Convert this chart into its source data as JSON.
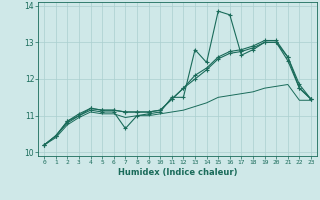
{
  "xlabel": "Humidex (Indice chaleur)",
  "ylabel": "",
  "xlim": [
    -0.5,
    23.5
  ],
  "ylim": [
    9.9,
    14.1
  ],
  "yticks": [
    10,
    11,
    12,
    13,
    14
  ],
  "xticks": [
    0,
    1,
    2,
    3,
    4,
    5,
    6,
    7,
    8,
    9,
    10,
    11,
    12,
    13,
    14,
    15,
    16,
    17,
    18,
    19,
    20,
    21,
    22,
    23
  ],
  "bg_color": "#cfe8e8",
  "grid_color": "#aacfcf",
  "line_color": "#1a6b5a",
  "line1_x": [
    0,
    1,
    2,
    3,
    4,
    5,
    6,
    7,
    8,
    9,
    10,
    11,
    12,
    13,
    14,
    15,
    16,
    17,
    18,
    19,
    20,
    21,
    22,
    23
  ],
  "line1_y": [
    10.2,
    10.45,
    10.8,
    11.0,
    11.15,
    11.1,
    11.1,
    10.65,
    11.0,
    11.05,
    11.1,
    11.5,
    11.5,
    12.8,
    12.45,
    13.85,
    13.75,
    12.65,
    12.8,
    13.0,
    13.0,
    12.5,
    11.75,
    11.45
  ],
  "line2_x": [
    0,
    1,
    2,
    3,
    4,
    5,
    6,
    7,
    8,
    9,
    10,
    11,
    12,
    13,
    14,
    15,
    16,
    17,
    18,
    19,
    20,
    21,
    22,
    23
  ],
  "line2_y": [
    10.2,
    10.45,
    10.85,
    11.05,
    11.2,
    11.15,
    11.15,
    11.1,
    11.1,
    11.1,
    11.15,
    11.45,
    11.75,
    12.0,
    12.25,
    12.55,
    12.7,
    12.75,
    12.85,
    13.0,
    13.0,
    12.6,
    11.75,
    11.45
  ],
  "line3_x": [
    0,
    1,
    2,
    3,
    4,
    5,
    6,
    7,
    8,
    9,
    10,
    11,
    12,
    13,
    14,
    15,
    16,
    17,
    18,
    19,
    20,
    21,
    22,
    23
  ],
  "line3_y": [
    10.2,
    10.45,
    10.85,
    11.0,
    11.2,
    11.15,
    11.15,
    11.1,
    11.1,
    11.1,
    11.15,
    11.45,
    11.75,
    12.1,
    12.3,
    12.6,
    12.75,
    12.8,
    12.9,
    13.05,
    13.05,
    12.6,
    11.85,
    11.45
  ],
  "line4_x": [
    0,
    1,
    2,
    3,
    4,
    5,
    6,
    7,
    8,
    9,
    10,
    11,
    12,
    13,
    14,
    15,
    16,
    17,
    18,
    19,
    20,
    21,
    22,
    23
  ],
  "line4_y": [
    10.2,
    10.4,
    10.75,
    10.95,
    11.1,
    11.05,
    11.05,
    10.95,
    11.0,
    11.0,
    11.05,
    11.1,
    11.15,
    11.25,
    11.35,
    11.5,
    11.55,
    11.6,
    11.65,
    11.75,
    11.8,
    11.85,
    11.42,
    11.42
  ]
}
